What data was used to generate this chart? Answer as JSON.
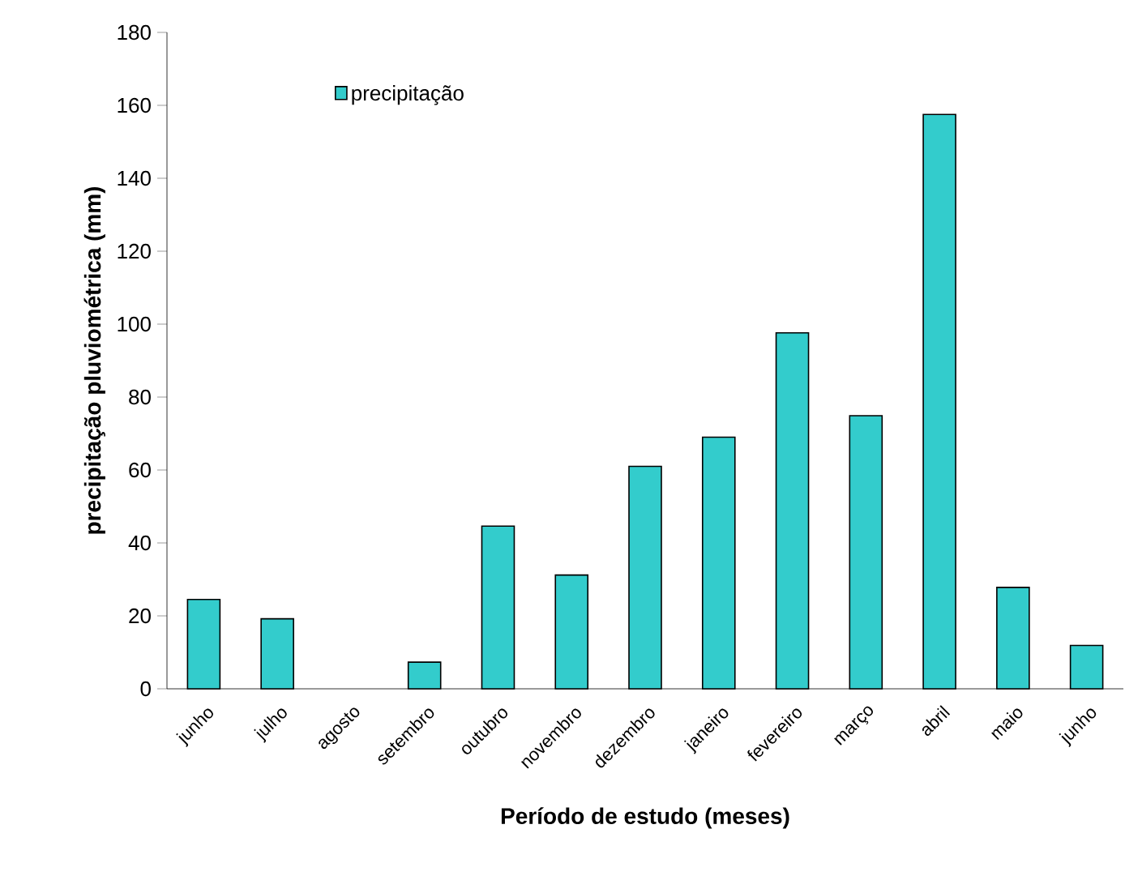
{
  "chart_data": {
    "type": "bar",
    "xlabel": "Período de estudo (meses)",
    "ylabel": "precipitação pluviométrica (mm)",
    "categories": [
      "junho",
      "julho",
      "agosto",
      "setembro",
      "outubro",
      "novembro",
      "dezembro",
      "janeiro",
      "fevereiro",
      "março",
      "abril",
      "maio",
      "junho"
    ],
    "series": [
      {
        "name": "precipitação",
        "color": "#33cccc",
        "values": [
          24.5,
          19.2,
          0,
          7.3,
          44.6,
          31.2,
          61,
          69,
          97.6,
          74.9,
          157.5,
          27.8,
          11.9
        ]
      }
    ],
    "ylim": [
      0,
      180
    ],
    "yticks": [
      0,
      20,
      40,
      60,
      80,
      100,
      120,
      140,
      160,
      180
    ],
    "legend": "top left",
    "grid": false
  }
}
